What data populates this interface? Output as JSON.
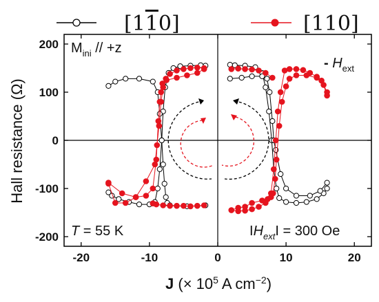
{
  "chart_data": {
    "type": "scatter",
    "xlabel": {
      "bold": "J",
      "rest": " (× 10",
      "sup": "5",
      "unit": " A cm",
      "unit_sup": "−2",
      "close": ")"
    },
    "ylabel": "Hall resistance (Ω)",
    "xlim": [
      -22.5,
      22.5
    ],
    "ylim": [
      -220,
      220
    ],
    "x_ticks": [
      -20,
      -10,
      0,
      10,
      20
    ],
    "y_ticks": [
      -200,
      -100,
      0,
      100,
      200
    ],
    "x_tick_labels": [
      "-20",
      "-10",
      "0",
      "10",
      "20"
    ],
    "y_tick_labels": [
      "-200",
      "-100",
      "0",
      "100",
      "200"
    ],
    "zero_lines": true,
    "legend_position": "top",
    "series": [
      {
        "name": "[1 1̄ 0]",
        "color": "#000000",
        "marker": "open-circle",
        "branches": [
          {
            "x": [
              -1.8,
              -2.5,
              -4,
              -5.5,
              -6.5,
              -7.2,
              -7.7,
              -8.0,
              -8.2,
              -8.5,
              -8.8,
              -9.2,
              -10,
              -11.5,
              -13,
              -14.5,
              -15.5,
              -16.0
            ],
            "y": [
              155,
              156,
              155,
              154,
              150,
              140,
              110,
              60,
              0,
              -60,
              -100,
              -128,
              -133,
              -133,
              -128,
              -122,
              -115,
              -108
            ]
          },
          {
            "x": [
              -16.0,
              -15.0,
              -13.5,
              -11.5,
              -9.5,
              -8.8,
              -8.5,
              -8.2,
              -8.0,
              -7.8,
              -7.6,
              -7.4,
              -7.0,
              -6.0,
              -4.5,
              -3.0,
              -1.8
            ],
            "y": [
              113,
              122,
              128,
              128,
              122,
              100,
              55,
              0,
              -50,
              -90,
              -118,
              -130,
              -135,
              -136,
              -137,
              -136,
              -135
            ]
          },
          {
            "x": [
              1.8,
              2.5,
              4,
              5.5,
              6.5,
              7.0,
              7.5,
              7.9,
              8.2,
              8.6,
              9.0,
              10,
              11.5,
              13,
              14.5,
              15.5,
              16.0
            ],
            "y": [
              157,
              156,
              155,
              152,
              140,
              110,
              60,
              0,
              -60,
              -100,
              -120,
              -128,
              -130,
              -128,
              -122,
              -110,
              -100
            ]
          },
          {
            "x": [
              16.0,
              15.0,
              13.5,
              11.5,
              10,
              9.2,
              8.5,
              8.2,
              8.0,
              7.6,
              7.2,
              6.5,
              5,
              3.5,
              1.8
            ],
            "y": [
              -88,
              -105,
              -115,
              -115,
              -100,
              -70,
              -20,
              0,
              40,
              100,
              128,
              133,
              133,
              130,
              128
            ]
          }
        ]
      },
      {
        "name": "[1 1 0]",
        "color": "#e5141e",
        "marker": "filled-circle",
        "branches": [
          {
            "x": [
              -2,
              -3,
              -4,
              -5,
              -6,
              -7,
              -7.6,
              -8.0,
              -8.3,
              -8.6,
              -8.9,
              -9.2,
              -10.5,
              -12,
              -13.5,
              -15,
              -16.0
            ],
            "y": [
              150,
              151,
              150,
              148,
              145,
              138,
              128,
              110,
              80,
              30,
              -10,
              -50,
              -85,
              -118,
              -130,
              -130,
              -90
            ]
          },
          {
            "x": [
              -16.0,
              -14,
              -12,
              -10.5,
              -9.5,
              -9.0,
              -8.7,
              -8.5,
              -8.3,
              -8.1,
              -7.5,
              -6,
              -4.5,
              -3,
              -2
            ],
            "y": [
              -88,
              -110,
              -118,
              -115,
              -100,
              -40,
              40,
              80,
              100,
              118,
              125,
              130,
              135,
              140,
              148
            ]
          },
          {
            "x": [
              -9.5,
              -9,
              -8,
              -7,
              -6,
              -5,
              -4,
              -3,
              -2
            ],
            "y": [
              -131,
              -133,
              -135,
              -136,
              -136,
              -136,
              -137,
              -136,
              -135
            ]
          },
          {
            "x": [
              2,
              3,
              4,
              5,
              6,
              7,
              7.8,
              8.2,
              8.5,
              8.8,
              9.2,
              9.8,
              10.5,
              11.5,
              12.5,
              13.5,
              14.5,
              15.2,
              16.0
            ],
            "y": [
              -145,
              -147,
              -146,
              -143,
              -138,
              -130,
              -110,
              -60,
              0,
              60,
              100,
              145,
              148,
              148,
              146,
              140,
              132,
              124,
              100
            ]
          },
          {
            "x": [
              16.0,
              15.5,
              14.5,
              13,
              11.5,
              10.5,
              10,
              9.4,
              9.0,
              8.6,
              8.4,
              8.1,
              7.8,
              7.3,
              6.5,
              5,
              4,
              3,
              2
            ],
            "y": [
              93,
              115,
              130,
              135,
              135,
              128,
              112,
              80,
              30,
              -40,
              -80,
              -110,
              -118,
              -122,
              -125,
              -130,
              -138,
              -140,
              -145
            ]
          },
          {
            "x": [
              2,
              3,
              4,
              5,
              6,
              7,
              8
            ],
            "y": [
              148,
              149,
              148,
              147,
              145,
              140,
              130
            ]
          }
        ]
      }
    ],
    "annotations": {
      "top_left": {
        "main": "M",
        "sub": "ini",
        "rest": " // +z"
      },
      "top_right": {
        "prefix": "- ",
        "main": "H",
        "sub": "ext"
      },
      "bottom_left": {
        "italic": "T",
        "rest": " = 55 K"
      },
      "bottom_right": {
        "prefix": "I",
        "main": "H",
        "sub": "ext",
        "rest": "I = 300 Oe"
      }
    }
  },
  "colors": {
    "black_series": "#000000",
    "red_series": "#e5141e"
  }
}
